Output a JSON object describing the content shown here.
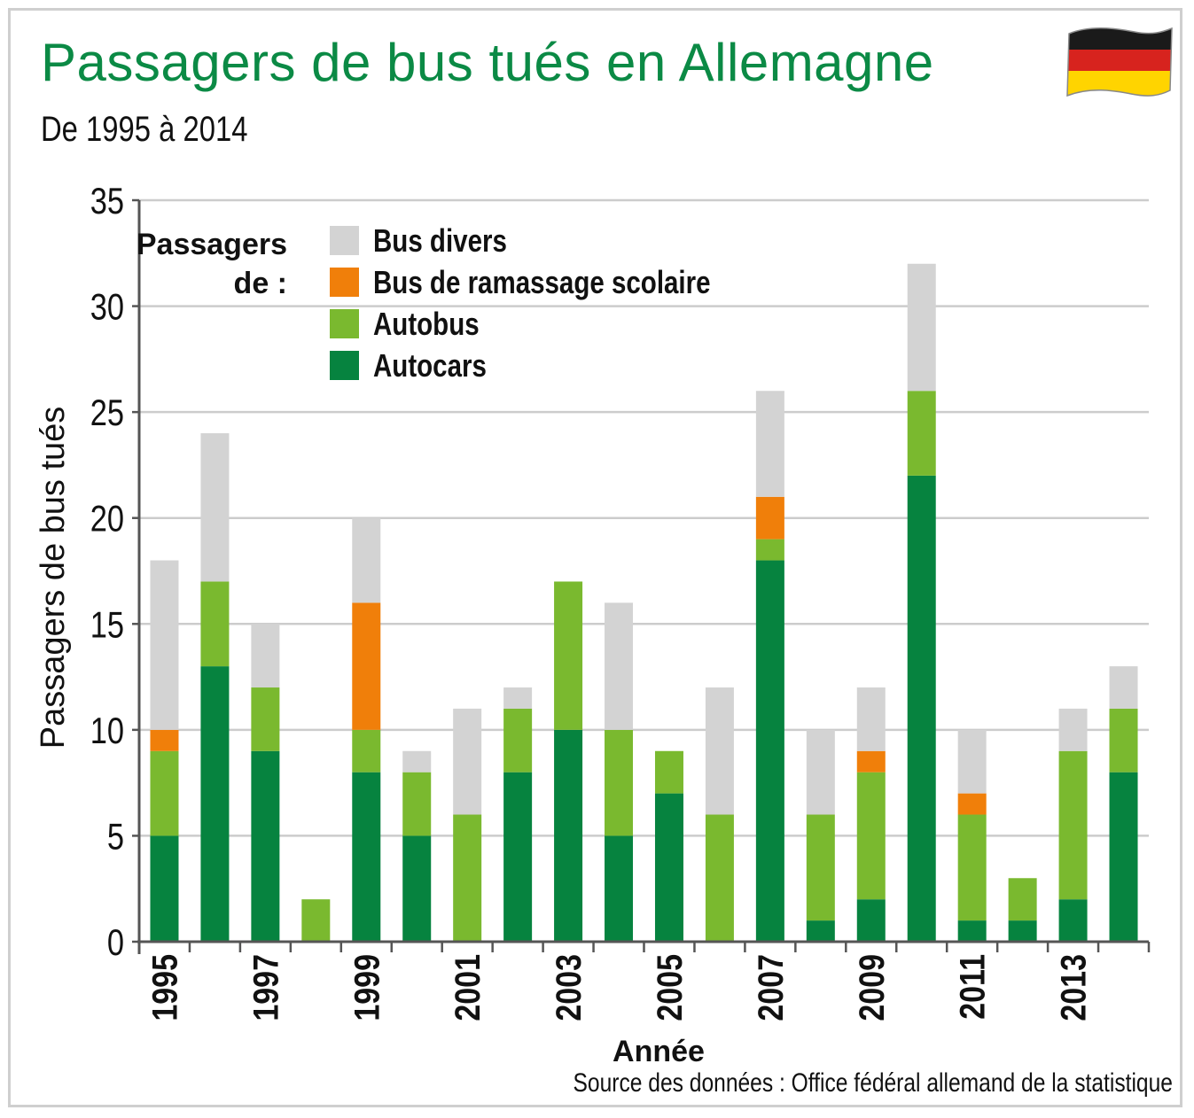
{
  "title": "Passagers de bus tués en Allemagne",
  "subtitle": "De 1995 à 2014",
  "source": "Source des données : Office fédéral allemand de la statistique",
  "flag_icon": "germany-flag-icon",
  "colors": {
    "title": "#0b8a45",
    "Bus divers": "#d3d3d3",
    "Bus de ramassage scolaire": "#f07f0a",
    "Autobus": "#7ab92f",
    "Autocars": "#06833f",
    "grid": "#cccccc",
    "axis": "#555555"
  },
  "legend": {
    "heading_line1": "Passagers",
    "heading_line2": "de :",
    "items": [
      "Bus divers",
      "Bus de ramassage scolaire",
      "Autobus",
      "Autocars"
    ]
  },
  "chart_data": {
    "type": "bar",
    "stacked": true,
    "title": "Passagers de bus tués en Allemagne",
    "subtitle": "De 1995 à 2014",
    "xlabel": "Année",
    "ylabel": "Passagers de bus tués",
    "ylim": [
      0,
      35
    ],
    "yticks": [
      0,
      5,
      10,
      15,
      20,
      25,
      30,
      35
    ],
    "grid": true,
    "legend_position": "top-left",
    "categories": [
      "1995",
      "1996",
      "1997",
      "1998",
      "1999",
      "2000",
      "2001",
      "2002",
      "2003",
      "2004",
      "2005",
      "2006",
      "2007",
      "2008",
      "2009",
      "2010",
      "2011",
      "2012",
      "2013",
      "2014"
    ],
    "x_tick_labels": [
      "1995",
      "",
      "1997",
      "",
      "1999",
      "",
      "2001",
      "",
      "2003",
      "",
      "2005",
      "",
      "2007",
      "",
      "2009",
      "",
      "2011",
      "",
      "2013",
      ""
    ],
    "series": [
      {
        "name": "Autocars",
        "values": [
          5,
          13,
          9,
          0,
          8,
          5,
          0,
          8,
          10,
          5,
          7,
          0,
          18,
          1,
          2,
          22,
          1,
          1,
          2,
          8
        ]
      },
      {
        "name": "Autobus",
        "values": [
          4,
          4,
          3,
          2,
          2,
          3,
          6,
          3,
          7,
          5,
          2,
          6,
          1,
          5,
          6,
          4,
          5,
          2,
          7,
          3
        ]
      },
      {
        "name": "Bus de ramassage scolaire",
        "values": [
          1,
          0,
          0,
          0,
          6,
          0,
          0,
          0,
          0,
          0,
          0,
          0,
          2,
          0,
          1,
          0,
          1,
          0,
          0,
          0
        ]
      },
      {
        "name": "Bus divers",
        "values": [
          8,
          7,
          3,
          0,
          4,
          1,
          5,
          1,
          0,
          6,
          0,
          6,
          5,
          4,
          3,
          6,
          3,
          0,
          2,
          2
        ]
      }
    ]
  }
}
